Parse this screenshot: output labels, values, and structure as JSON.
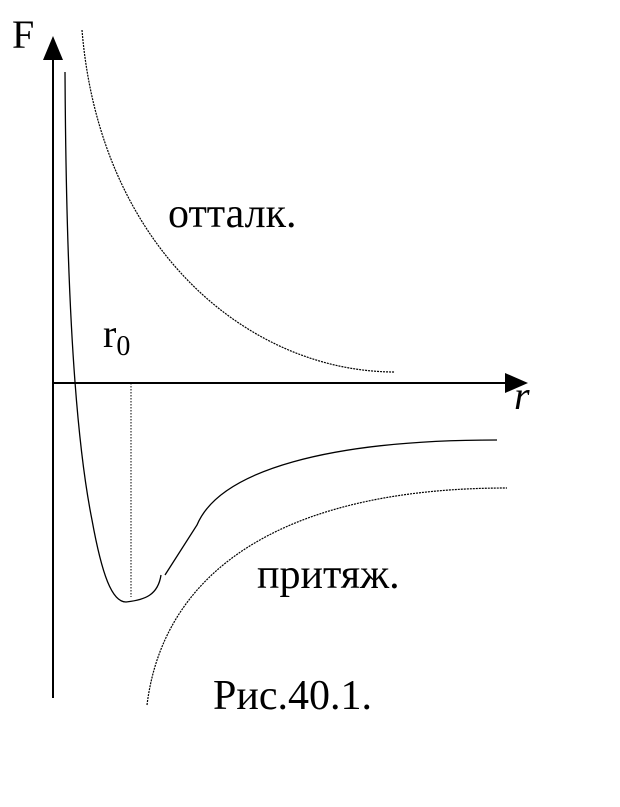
{
  "axes": {
    "y_label": "F",
    "x_label": "r"
  },
  "labels": {
    "repulsion": "отталк.",
    "attraction": "притяж.",
    "r0_base": "r",
    "r0_sub": "0"
  },
  "caption": "Рис.40.1."
}
